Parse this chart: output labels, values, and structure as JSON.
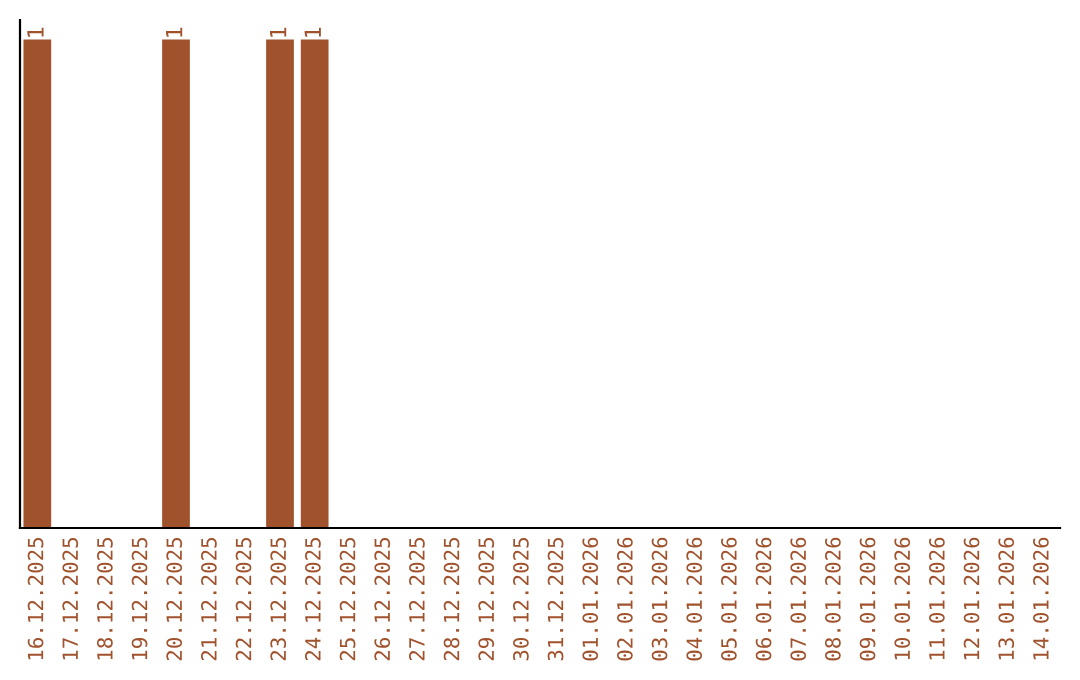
{
  "chart_data": {
    "type": "bar",
    "categories": [
      "16.12.2025",
      "17.12.2025",
      "18.12.2025",
      "19.12.2025",
      "20.12.2025",
      "21.12.2025",
      "22.12.2025",
      "23.12.2025",
      "24.12.2025",
      "25.12.2025",
      "26.12.2025",
      "27.12.2025",
      "28.12.2025",
      "29.12.2025",
      "30.12.2025",
      "31.12.2025",
      "01.01.2026",
      "02.01.2026",
      "03.01.2026",
      "04.01.2026",
      "05.01.2026",
      "06.01.2026",
      "07.01.2026",
      "08.01.2026",
      "09.01.2026",
      "10.01.2026",
      "11.01.2026",
      "12.01.2026",
      "13.01.2026",
      "14.01.2026"
    ],
    "values": [
      1,
      0,
      0,
      0,
      1,
      0,
      0,
      1,
      1,
      0,
      0,
      0,
      0,
      0,
      0,
      0,
      0,
      0,
      0,
      0,
      0,
      0,
      0,
      0,
      0,
      0,
      0,
      0,
      0,
      0
    ],
    "value_labels": [
      "1",
      null,
      null,
      null,
      "1",
      null,
      null,
      "1",
      "1",
      null,
      null,
      null,
      null,
      null,
      null,
      null,
      null,
      null,
      null,
      null,
      null,
      null,
      null,
      null,
      null,
      null,
      null,
      null,
      null,
      null
    ],
    "color": "#a0522d",
    "grid": false,
    "legend": false
  }
}
